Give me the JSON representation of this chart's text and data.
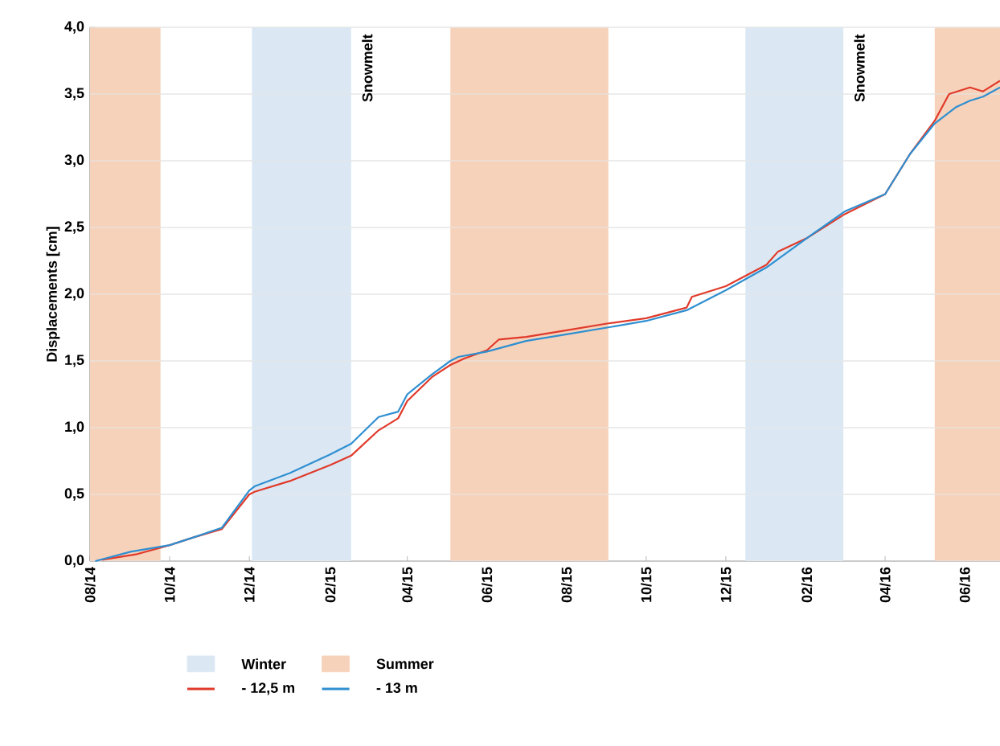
{
  "chart_data": {
    "type": "line",
    "ylabel": "Displacements [cm]",
    "xlim": [
      "2014-08-01",
      "2016-06-28"
    ],
    "xticks": [
      {
        "value": "2014-08-01",
        "label": "08/14"
      },
      {
        "value": "2014-10-01",
        "label": "10/14"
      },
      {
        "value": "2014-12-01",
        "label": "12/14"
      },
      {
        "value": "2015-02-01",
        "label": "02/15"
      },
      {
        "value": "2015-04-01",
        "label": "04/15"
      },
      {
        "value": "2015-06-01",
        "label": "06/15"
      },
      {
        "value": "2015-08-01",
        "label": "08/15"
      },
      {
        "value": "2015-10-01",
        "label": "10/15"
      },
      {
        "value": "2015-12-01",
        "label": "12/15"
      },
      {
        "value": "2016-02-01",
        "label": "02/16"
      },
      {
        "value": "2016-04-01",
        "label": "04/16"
      },
      {
        "value": "2016-06-01",
        "label": "06/16"
      }
    ],
    "ylim": [
      0,
      4
    ],
    "yticks": [
      {
        "value": 0,
        "label": "0,0"
      },
      {
        "value": 0.5,
        "label": "0,5"
      },
      {
        "value": 1,
        "label": "1,0"
      },
      {
        "value": 1.5,
        "label": "1,5"
      },
      {
        "value": 2,
        "label": "2,0"
      },
      {
        "value": 2.5,
        "label": "2,5"
      },
      {
        "value": 3,
        "label": "3,0"
      },
      {
        "value": 3.5,
        "label": "3,5"
      },
      {
        "value": 4,
        "label": "4,0"
      }
    ],
    "grid": "y",
    "legend": "bottom",
    "bands": [
      {
        "axis": "x",
        "from": "2014-08-01",
        "to": "2014-09-24",
        "label": "Summer",
        "color": "#f7d2bb"
      },
      {
        "axis": "x",
        "from": "2014-12-03",
        "to": "2015-02-17",
        "label": "Winter",
        "color": "#dbe8f4"
      },
      {
        "axis": "x",
        "from": "2015-05-04",
        "to": "2015-09-02",
        "color": "#f7d2bb"
      },
      {
        "axis": "x",
        "from": "2015-12-16",
        "to": "2016-02-29",
        "color": "#dbe8f4"
      },
      {
        "axis": "x",
        "from": "2016-05-09",
        "to": "2016-06-28",
        "color": "#f7d2bb"
      }
    ],
    "annotations": [
      "Snowmelt",
      "Snowmelt"
    ],
    "series": [
      {
        "name": "- 12,5 m",
        "color": "#e03a2a",
        "x": [
          "2014-08-10",
          "2014-09-05",
          "2014-10-01",
          "2014-10-20",
          "2014-11-10",
          "2014-12-01",
          "2014-12-05",
          "2015-01-01",
          "2015-02-01",
          "2015-02-17",
          "2015-03-10",
          "2015-03-25",
          "2015-04-01",
          "2015-04-20",
          "2015-05-04",
          "2015-05-15",
          "2015-06-01",
          "2015-06-10",
          "2015-07-01",
          "2015-08-01",
          "2015-09-01",
          "2015-10-01",
          "2015-11-01",
          "2015-11-05",
          "2015-12-01",
          "2016-01-01",
          "2016-01-10",
          "2016-02-01",
          "2016-03-01",
          "2016-04-01",
          "2016-04-20",
          "2016-05-09",
          "2016-05-20",
          "2016-06-05",
          "2016-06-15",
          "2016-06-28"
        ],
        "values": [
          0.01,
          0.05,
          0.12,
          0.18,
          0.24,
          0.5,
          0.52,
          0.6,
          0.72,
          0.79,
          0.98,
          1.07,
          1.2,
          1.38,
          1.47,
          1.52,
          1.58,
          1.66,
          1.68,
          1.73,
          1.78,
          1.82,
          1.9,
          1.98,
          2.06,
          2.22,
          2.32,
          2.42,
          2.6,
          2.75,
          3.05,
          3.3,
          3.5,
          3.55,
          3.52,
          3.6
        ]
      },
      {
        "name": "- 13 m",
        "color": "#2f8fd0",
        "x": [
          "2014-08-05",
          "2014-09-01",
          "2014-10-01",
          "2014-10-20",
          "2014-11-10",
          "2014-12-01",
          "2014-12-05",
          "2015-01-01",
          "2015-02-01",
          "2015-02-17",
          "2015-03-10",
          "2015-03-25",
          "2015-04-01",
          "2015-04-20",
          "2015-05-04",
          "2015-05-10",
          "2015-06-01",
          "2015-07-01",
          "2015-08-01",
          "2015-09-01",
          "2015-10-01",
          "2015-11-01",
          "2015-12-01",
          "2016-01-01",
          "2016-02-01",
          "2016-03-01",
          "2016-04-01",
          "2016-04-20",
          "2016-05-09",
          "2016-05-25",
          "2016-06-05",
          "2016-06-15",
          "2016-06-28"
        ],
        "values": [
          0.0,
          0.07,
          0.12,
          0.18,
          0.25,
          0.53,
          0.56,
          0.66,
          0.8,
          0.88,
          1.08,
          1.12,
          1.25,
          1.4,
          1.5,
          1.53,
          1.57,
          1.65,
          1.7,
          1.75,
          1.8,
          1.88,
          2.03,
          2.2,
          2.42,
          2.62,
          2.75,
          3.05,
          3.28,
          3.4,
          3.45,
          3.48,
          3.55
        ]
      }
    ]
  }
}
